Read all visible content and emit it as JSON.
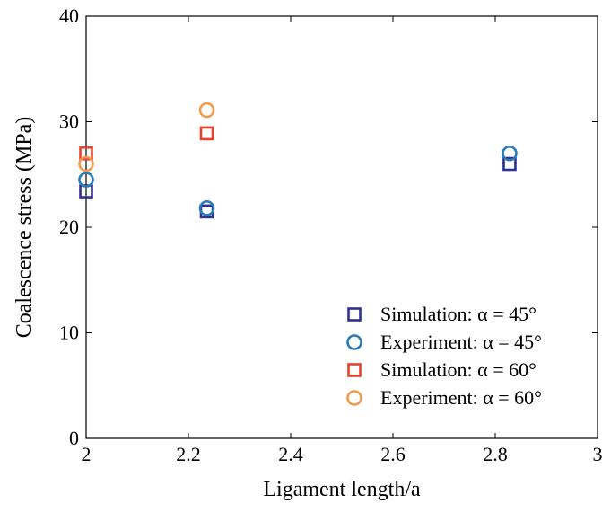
{
  "chart_data": {
    "type": "scatter",
    "xlabel": "Ligament length/a",
    "ylabel": "Coalescence stress (MPa)",
    "xlim": [
      2,
      3
    ],
    "ylim": [
      0,
      40
    ],
    "xticks": [
      "2",
      "2.2",
      "2.4",
      "2.6",
      "2.8",
      "3"
    ],
    "yticks": [
      "0",
      "10",
      "20",
      "30",
      "40"
    ],
    "grid": false,
    "legend_position": "bottom-right",
    "series": [
      {
        "name": "Simulation: α = 45°",
        "marker": "square",
        "color": "#2E3192",
        "points": [
          {
            "x": 2.0,
            "y": 23.4
          },
          {
            "x": 2.236,
            "y": 21.5
          },
          {
            "x": 2.828,
            "y": 26.0
          }
        ]
      },
      {
        "name": "Experiment: α = 45°",
        "marker": "circle",
        "color": "#2B7BB9",
        "points": [
          {
            "x": 2.0,
            "y": 24.5
          },
          {
            "x": 2.236,
            "y": 21.8
          },
          {
            "x": 2.828,
            "y": 27.0
          }
        ]
      },
      {
        "name": "Simulation: α = 60°",
        "marker": "square",
        "color": "#E8412C",
        "points": [
          {
            "x": 2.0,
            "y": 27.0
          },
          {
            "x": 2.236,
            "y": 28.9
          }
        ]
      },
      {
        "name": "Experiment: α = 60°",
        "marker": "circle",
        "color": "#F39A4A",
        "points": [
          {
            "x": 2.0,
            "y": 26.0
          },
          {
            "x": 2.236,
            "y": 31.1
          }
        ]
      }
    ]
  }
}
